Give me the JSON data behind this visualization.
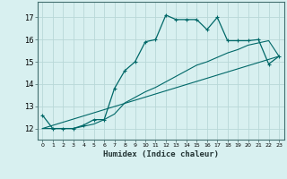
{
  "xlabel": "Humidex (Indice chaleur)",
  "bg_color": "#d8f0f0",
  "grid_color": "#b8d8d8",
  "line_color": "#006868",
  "xlim": [
    -0.5,
    23.5
  ],
  "ylim": [
    11.5,
    17.7
  ],
  "yticks": [
    12,
    13,
    14,
    15,
    16,
    17
  ],
  "xticks": [
    0,
    1,
    2,
    3,
    4,
    5,
    6,
    7,
    8,
    9,
    10,
    11,
    12,
    13,
    14,
    15,
    16,
    17,
    18,
    19,
    20,
    21,
    22,
    23
  ],
  "main_x": [
    0,
    1,
    2,
    3,
    4,
    5,
    6,
    7,
    8,
    9,
    10,
    11,
    12,
    13,
    14,
    15,
    16,
    17,
    18,
    19,
    20,
    21,
    22,
    23
  ],
  "main_y": [
    12.6,
    12.0,
    12.0,
    12.0,
    12.15,
    12.4,
    12.4,
    13.8,
    14.6,
    15.0,
    15.9,
    16.0,
    17.1,
    16.9,
    16.9,
    16.9,
    16.45,
    17.0,
    15.95,
    15.95,
    15.95,
    16.0,
    14.9,
    15.25
  ],
  "line2_x": [
    0,
    1,
    2,
    3,
    4,
    5,
    6,
    7,
    8,
    9,
    10,
    11,
    12,
    13,
    14,
    15,
    16,
    17,
    18,
    19,
    20,
    21,
    22,
    23
  ],
  "line2_y": [
    12.0,
    12.0,
    12.0,
    12.0,
    12.1,
    12.2,
    12.4,
    12.65,
    13.15,
    13.4,
    13.65,
    13.85,
    14.1,
    14.35,
    14.6,
    14.85,
    15.0,
    15.2,
    15.4,
    15.55,
    15.75,
    15.85,
    15.95,
    15.25
  ],
  "line3_x": [
    0,
    23
  ],
  "line3_y": [
    12.0,
    15.25
  ]
}
